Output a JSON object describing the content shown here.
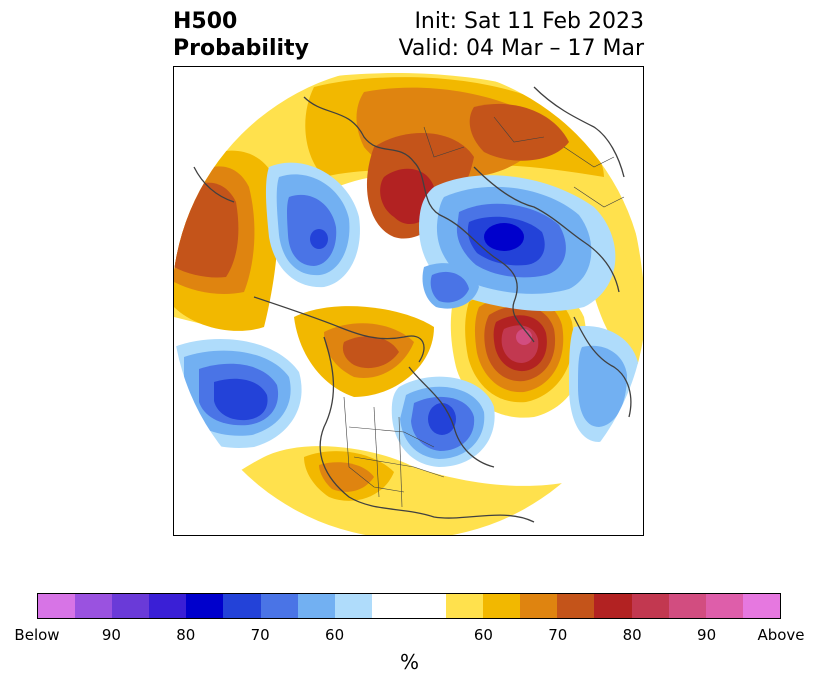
{
  "header": {
    "title_line1": "H500",
    "title_line2": "Probability",
    "init": "Init: Sat 11 Feb 2023",
    "valid": "Valid: 04 Mar – 17 Mar"
  },
  "legend": {
    "segments": [
      "#d774e6",
      "#9a52e0",
      "#6a3ad8",
      "#3a1fd6",
      "#0000cc",
      "#2342d8",
      "#4a74e6",
      "#72b0f2",
      "#afdcfb",
      "#ffffff",
      "#ffe14d",
      "#f2b800",
      "#df8410",
      "#c4541a",
      "#b22222",
      "#c23850",
      "#d24d80",
      "#de5eaa",
      "#e678e0"
    ],
    "tick_labels": [
      "Below",
      "90",
      "80",
      "70",
      "60",
      "60",
      "70",
      "80",
      "90",
      "Above"
    ],
    "unit": "%"
  },
  "map": {
    "projection": "north-polar stereographic",
    "colors": {
      "red_dark": "#b22222",
      "red": "#c23850",
      "pink": "#d24d80",
      "orange_dark": "#c4541a",
      "orange": "#df8410",
      "gold": "#f2b800",
      "yellow": "#ffe14d",
      "blue_light": "#afdcfb",
      "blue_mid": "#72b0f2",
      "blue": "#4a74e6",
      "blue_dark": "#2342d8",
      "blue_deep": "#0000cc"
    }
  }
}
